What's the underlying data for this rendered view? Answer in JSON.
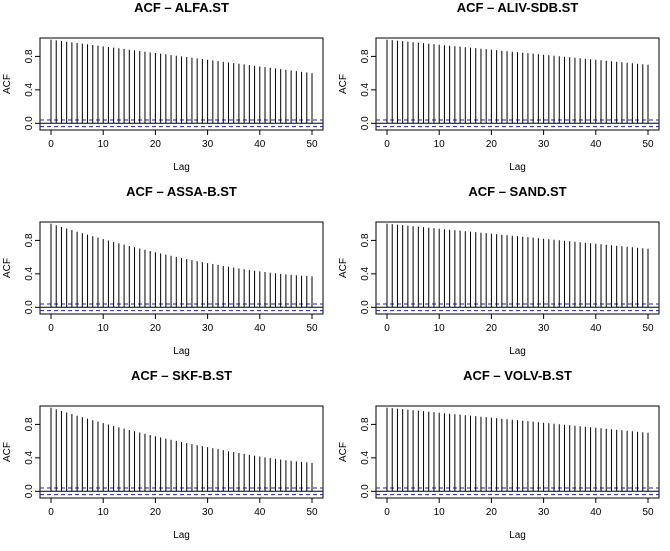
{
  "chart_data": [
    {
      "type": "bar",
      "title": "ACF – ALFA.ST",
      "xlabel": "Lag",
      "ylabel": "ACF",
      "xlim": [
        0,
        50
      ],
      "ylim": [
        -0.08,
        1.02
      ],
      "xticks": [
        0,
        10,
        20,
        30,
        40,
        50
      ],
      "yticks": [
        0.0,
        0.4,
        0.8
      ],
      "ytick_labels": [
        "0.0",
        "0.4",
        "0.8"
      ],
      "conf_band": 0.04,
      "x": [
        0,
        1,
        2,
        3,
        4,
        5,
        6,
        7,
        8,
        9,
        10,
        11,
        12,
        13,
        14,
        15,
        16,
        17,
        18,
        19,
        20,
        21,
        22,
        23,
        24,
        25,
        26,
        27,
        28,
        29,
        30,
        31,
        32,
        33,
        34,
        35,
        36,
        37,
        38,
        39,
        40,
        41,
        42,
        43,
        44,
        45,
        46,
        47,
        48,
        49,
        50
      ],
      "values": [
        1.0,
        0.992,
        0.984,
        0.976,
        0.968,
        0.96,
        0.952,
        0.944,
        0.936,
        0.928,
        0.92,
        0.912,
        0.904,
        0.896,
        0.888,
        0.88,
        0.872,
        0.864,
        0.856,
        0.848,
        0.84,
        0.832,
        0.824,
        0.816,
        0.808,
        0.8,
        0.792,
        0.784,
        0.776,
        0.768,
        0.76,
        0.752,
        0.744,
        0.736,
        0.728,
        0.72,
        0.712,
        0.704,
        0.696,
        0.688,
        0.68,
        0.672,
        0.664,
        0.656,
        0.648,
        0.64,
        0.632,
        0.624,
        0.616,
        0.608,
        0.6
      ]
    },
    {
      "type": "bar",
      "title": "ACF – ALIV-SDB.ST",
      "xlabel": "Lag",
      "ylabel": "ACF",
      "xlim": [
        0,
        50
      ],
      "ylim": [
        -0.08,
        1.02
      ],
      "xticks": [
        0,
        10,
        20,
        30,
        40,
        50
      ],
      "yticks": [
        0.0,
        0.4,
        0.8
      ],
      "ytick_labels": [
        "0.0",
        "0.4",
        "0.8"
      ],
      "conf_band": 0.04,
      "x": [
        0,
        1,
        2,
        3,
        4,
        5,
        6,
        7,
        8,
        9,
        10,
        11,
        12,
        13,
        14,
        15,
        16,
        17,
        18,
        19,
        20,
        21,
        22,
        23,
        24,
        25,
        26,
        27,
        28,
        29,
        30,
        31,
        32,
        33,
        34,
        35,
        36,
        37,
        38,
        39,
        40,
        41,
        42,
        43,
        44,
        45,
        46,
        47,
        48,
        49,
        50
      ],
      "values": [
        1.0,
        0.994,
        0.988,
        0.982,
        0.976,
        0.97,
        0.964,
        0.958,
        0.952,
        0.946,
        0.94,
        0.934,
        0.928,
        0.922,
        0.916,
        0.91,
        0.904,
        0.898,
        0.892,
        0.886,
        0.88,
        0.874,
        0.868,
        0.862,
        0.856,
        0.85,
        0.844,
        0.838,
        0.832,
        0.826,
        0.82,
        0.814,
        0.808,
        0.802,
        0.796,
        0.79,
        0.784,
        0.778,
        0.772,
        0.766,
        0.76,
        0.754,
        0.748,
        0.742,
        0.736,
        0.73,
        0.724,
        0.718,
        0.712,
        0.706,
        0.7
      ]
    },
    {
      "type": "bar",
      "title": "ACF – ASSA-B.ST",
      "xlabel": "Lag",
      "ylabel": "ACF",
      "xlim": [
        0,
        50
      ],
      "ylim": [
        -0.08,
        1.02
      ],
      "xticks": [
        0,
        10,
        20,
        30,
        40,
        50
      ],
      "yticks": [
        0.0,
        0.4,
        0.8
      ],
      "ytick_labels": [
        "0.0",
        "0.4",
        "0.8"
      ],
      "conf_band": 0.04,
      "x": [
        0,
        1,
        2,
        3,
        4,
        5,
        6,
        7,
        8,
        9,
        10,
        11,
        12,
        13,
        14,
        15,
        16,
        17,
        18,
        19,
        20,
        21,
        22,
        23,
        24,
        25,
        26,
        27,
        28,
        29,
        30,
        31,
        32,
        33,
        34,
        35,
        36,
        37,
        38,
        39,
        40,
        41,
        42,
        43,
        44,
        45,
        46,
        47,
        48,
        49,
        50
      ],
      "values": [
        1.0,
        0.98,
        0.961,
        0.942,
        0.923,
        0.904,
        0.886,
        0.868,
        0.85,
        0.833,
        0.816,
        0.799,
        0.782,
        0.766,
        0.75,
        0.734,
        0.718,
        0.703,
        0.688,
        0.673,
        0.658,
        0.644,
        0.63,
        0.616,
        0.603,
        0.59,
        0.577,
        0.564,
        0.552,
        0.54,
        0.528,
        0.517,
        0.506,
        0.495,
        0.485,
        0.475,
        0.465,
        0.456,
        0.447,
        0.438,
        0.43,
        0.422,
        0.414,
        0.407,
        0.4,
        0.394,
        0.388,
        0.383,
        0.378,
        0.374,
        0.37
      ]
    },
    {
      "type": "bar",
      "title": "ACF – SAND.ST",
      "xlabel": "Lag",
      "ylabel": "ACF",
      "xlim": [
        0,
        50
      ],
      "ylim": [
        -0.08,
        1.02
      ],
      "xticks": [
        0,
        10,
        20,
        30,
        40,
        50
      ],
      "yticks": [
        0.0,
        0.4,
        0.8
      ],
      "ytick_labels": [
        "0.0",
        "0.4",
        "0.8"
      ],
      "conf_band": 0.04,
      "x": [
        0,
        1,
        2,
        3,
        4,
        5,
        6,
        7,
        8,
        9,
        10,
        11,
        12,
        13,
        14,
        15,
        16,
        17,
        18,
        19,
        20,
        21,
        22,
        23,
        24,
        25,
        26,
        27,
        28,
        29,
        30,
        31,
        32,
        33,
        34,
        35,
        36,
        37,
        38,
        39,
        40,
        41,
        42,
        43,
        44,
        45,
        46,
        47,
        48,
        49,
        50
      ],
      "values": [
        1.0,
        0.994,
        0.988,
        0.982,
        0.976,
        0.97,
        0.964,
        0.958,
        0.952,
        0.946,
        0.94,
        0.934,
        0.928,
        0.922,
        0.916,
        0.91,
        0.904,
        0.898,
        0.892,
        0.886,
        0.88,
        0.874,
        0.868,
        0.862,
        0.856,
        0.85,
        0.844,
        0.838,
        0.832,
        0.826,
        0.82,
        0.814,
        0.808,
        0.802,
        0.796,
        0.79,
        0.784,
        0.778,
        0.772,
        0.766,
        0.76,
        0.754,
        0.748,
        0.742,
        0.736,
        0.73,
        0.724,
        0.718,
        0.712,
        0.706,
        0.7
      ]
    },
    {
      "type": "bar",
      "title": "ACF – SKF-B.ST",
      "xlabel": "Lag",
      "ylabel": "ACF",
      "xlim": [
        0,
        50
      ],
      "ylim": [
        -0.08,
        1.02
      ],
      "xticks": [
        0,
        10,
        20,
        30,
        40,
        50
      ],
      "yticks": [
        0.0,
        0.4,
        0.8
      ],
      "ytick_labels": [
        "0.0",
        "0.4",
        "0.8"
      ],
      "conf_band": 0.04,
      "x": [
        0,
        1,
        2,
        3,
        4,
        5,
        6,
        7,
        8,
        9,
        10,
        11,
        12,
        13,
        14,
        15,
        16,
        17,
        18,
        19,
        20,
        21,
        22,
        23,
        24,
        25,
        26,
        27,
        28,
        29,
        30,
        31,
        32,
        33,
        34,
        35,
        36,
        37,
        38,
        39,
        40,
        41,
        42,
        43,
        44,
        45,
        46,
        47,
        48,
        49,
        50
      ],
      "values": [
        1.0,
        0.98,
        0.961,
        0.942,
        0.923,
        0.904,
        0.886,
        0.868,
        0.85,
        0.833,
        0.816,
        0.799,
        0.782,
        0.766,
        0.75,
        0.734,
        0.718,
        0.703,
        0.688,
        0.673,
        0.658,
        0.644,
        0.63,
        0.616,
        0.603,
        0.59,
        0.577,
        0.564,
        0.552,
        0.54,
        0.528,
        0.516,
        0.504,
        0.492,
        0.48,
        0.469,
        0.458,
        0.447,
        0.436,
        0.426,
        0.416,
        0.406,
        0.397,
        0.388,
        0.38,
        0.372,
        0.365,
        0.358,
        0.352,
        0.346,
        0.34
      ]
    },
    {
      "type": "bar",
      "title": "ACF – VOLV-B.ST",
      "xlabel": "Lag",
      "ylabel": "ACF",
      "xlim": [
        0,
        50
      ],
      "ylim": [
        -0.08,
        1.02
      ],
      "xticks": [
        0,
        10,
        20,
        30,
        40,
        50
      ],
      "yticks": [
        0.0,
        0.4,
        0.8
      ],
      "ytick_labels": [
        "0.0",
        "0.4",
        "0.8"
      ],
      "conf_band": 0.04,
      "x": [
        0,
        1,
        2,
        3,
        4,
        5,
        6,
        7,
        8,
        9,
        10,
        11,
        12,
        13,
        14,
        15,
        16,
        17,
        18,
        19,
        20,
        21,
        22,
        23,
        24,
        25,
        26,
        27,
        28,
        29,
        30,
        31,
        32,
        33,
        34,
        35,
        36,
        37,
        38,
        39,
        40,
        41,
        42,
        43,
        44,
        45,
        46,
        47,
        48,
        49,
        50
      ],
      "values": [
        1.0,
        0.994,
        0.988,
        0.982,
        0.976,
        0.97,
        0.964,
        0.958,
        0.952,
        0.946,
        0.94,
        0.934,
        0.928,
        0.922,
        0.916,
        0.91,
        0.904,
        0.898,
        0.892,
        0.886,
        0.88,
        0.874,
        0.868,
        0.862,
        0.856,
        0.85,
        0.844,
        0.838,
        0.832,
        0.826,
        0.82,
        0.814,
        0.808,
        0.802,
        0.796,
        0.79,
        0.784,
        0.778,
        0.772,
        0.766,
        0.76,
        0.754,
        0.748,
        0.742,
        0.736,
        0.73,
        0.724,
        0.718,
        0.712,
        0.706,
        0.7
      ]
    }
  ],
  "colors": {
    "bar": "#000000",
    "zero_line": "#000000",
    "conf_band": "#2222aa"
  }
}
